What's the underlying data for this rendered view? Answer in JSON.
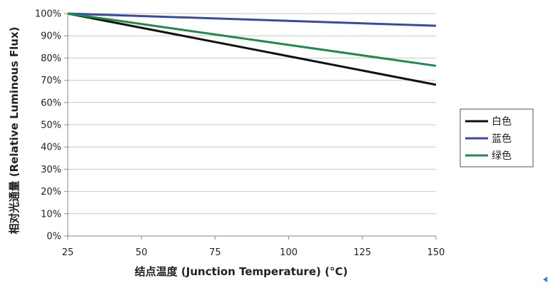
{
  "chart_data": {
    "type": "line",
    "title": "",
    "xlabel": "结点温度 (Junction Temperature) (°C)",
    "ylabel": "相对光通量 (Relative Luminous Flux)",
    "x": [
      25,
      150
    ],
    "xlim": [
      25,
      150
    ],
    "ylim": [
      0,
      100
    ],
    "x_ticks": [
      25,
      50,
      75,
      100,
      125,
      150
    ],
    "x_tick_labels": [
      "25",
      "50",
      "75",
      "100",
      "125",
      "150"
    ],
    "y_ticks": [
      0,
      10,
      20,
      30,
      40,
      50,
      60,
      70,
      80,
      90,
      100
    ],
    "y_tick_labels": [
      "0%",
      "10%",
      "20%",
      "30%",
      "40%",
      "50%",
      "60%",
      "70%",
      "80%",
      "90%",
      "100%"
    ],
    "grid": true,
    "legend_position": "right",
    "series": [
      {
        "name": "白色",
        "color": "#111111",
        "values": [
          100,
          68
        ]
      },
      {
        "name": "蓝色",
        "color": "#3b4aa0",
        "values": [
          100,
          94.5
        ]
      },
      {
        "name": "绿色",
        "color": "#1f8a4c",
        "values": [
          100,
          76.5
        ]
      }
    ]
  },
  "decor": {
    "corner_icon": "back-arrow-icon",
    "corner_icon_color": "#3b7dd8"
  }
}
